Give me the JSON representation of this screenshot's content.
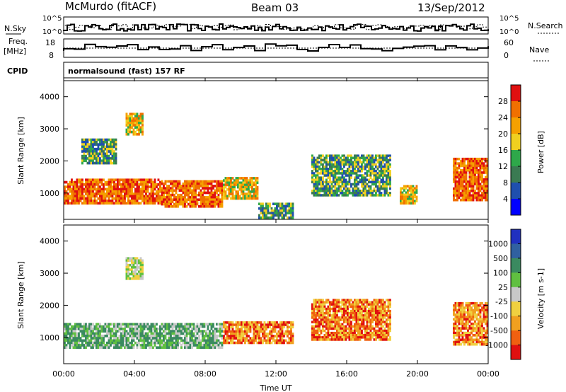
{
  "header": {
    "station": "McMurdo (fitACF)",
    "beam": "Beam 03",
    "date": "13/Sep/2012"
  },
  "top_panels": {
    "nsky_label": "N.Sky",
    "nsearch_label": "N.Search",
    "nsky_ticks": [
      "10^5",
      "10^0"
    ],
    "nsearch_ticks": [
      "10^5",
      "10^0"
    ],
    "freq_label_1": "Freq.",
    "freq_label_2": "[MHz]",
    "freq_ticks": [
      "18",
      "8"
    ],
    "nave_label": "Nave",
    "nave_ticks": [
      "60",
      "0"
    ],
    "cpid_label": "CPID",
    "cpid_value": "normalsound (fast) 157 RF"
  },
  "x_axis": {
    "title": "Time UT",
    "ticks": [
      "00:00",
      "04:00",
      "08:00",
      "12:00",
      "16:00",
      "20:00",
      "00:00"
    ]
  },
  "chart_data": [
    {
      "type": "heatmap",
      "panel": "power",
      "ylabel": "Slant Range [km]",
      "yticks": [
        "1000",
        "2000",
        "3000",
        "4000"
      ],
      "ylim": [
        180,
        4500
      ],
      "xlim": [
        0,
        24
      ],
      "colorbar_label": "Power [dB]",
      "colorbar_ticks": [
        "4",
        "8",
        "12",
        "16",
        "20",
        "24",
        "28"
      ],
      "colors": [
        "#0000ff",
        "#1f4fae",
        "#3a7a52",
        "#2ea84a",
        "#f0d020",
        "#f5a000",
        "#f07000",
        "#e01010"
      ],
      "regions": [
        {
          "t0": 0.0,
          "t1": 5.5,
          "r0": 650,
          "r1": 1450,
          "level": "high"
        },
        {
          "t0": 5.5,
          "t1": 9.0,
          "r0": 550,
          "r1": 1400,
          "level": "high"
        },
        {
          "t0": 9.0,
          "t1": 11.0,
          "r0": 800,
          "r1": 1500,
          "level": "mid"
        },
        {
          "t0": 3.5,
          "t1": 4.5,
          "r0": 2800,
          "r1": 3500,
          "level": "mid"
        },
        {
          "t0": 1.0,
          "t1": 3.0,
          "r0": 1900,
          "r1": 2700,
          "level": "low"
        },
        {
          "t0": 14.0,
          "t1": 18.5,
          "r0": 900,
          "r1": 2200,
          "level": "low"
        },
        {
          "t0": 19.0,
          "t1": 20.0,
          "r0": 650,
          "r1": 1250,
          "level": "mid"
        },
        {
          "t0": 22.0,
          "t1": 24.0,
          "r0": 750,
          "r1": 2100,
          "level": "high"
        },
        {
          "t0": 11.0,
          "t1": 13.0,
          "r0": 200,
          "r1": 700,
          "level": "low"
        }
      ]
    },
    {
      "type": "heatmap",
      "panel": "velocity",
      "ylabel": "Slant Range [km]",
      "yticks": [
        "1000",
        "2000",
        "3000",
        "4000"
      ],
      "ylim": [
        180,
        4500
      ],
      "xlim": [
        0,
        24
      ],
      "colorbar_label": "Velocity [m s-1]",
      "colorbar_ticks": [
        "1000",
        "500",
        "100",
        "25",
        "-25",
        "-100",
        "-500",
        "-1000"
      ],
      "colors": [
        "#2030c0",
        "#3060a0",
        "#3a8a60",
        "#60c040",
        "#c8c8c8",
        "#f0d040",
        "#f0a020",
        "#f06010",
        "#e01010"
      ],
      "regions": [
        {
          "t0": 0.0,
          "t1": 9.0,
          "r0": 650,
          "r1": 1450,
          "level": "green"
        },
        {
          "t0": 9.0,
          "t1": 13.0,
          "r0": 800,
          "r1": 1500,
          "level": "orange"
        },
        {
          "t0": 3.5,
          "t1": 4.5,
          "r0": 2800,
          "r1": 3500,
          "level": "gray"
        },
        {
          "t0": 14.0,
          "t1": 18.5,
          "r0": 900,
          "r1": 2200,
          "level": "orange"
        },
        {
          "t0": 22.0,
          "t1": 24.0,
          "r0": 750,
          "r1": 2100,
          "level": "orange"
        }
      ]
    }
  ]
}
